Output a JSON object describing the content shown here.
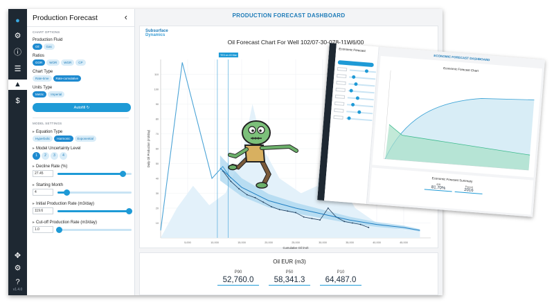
{
  "sidebar": {
    "title": "Production Forecast",
    "chart_options_title": "CHART OPTIONS",
    "production_fluid": {
      "label": "Production Fluid",
      "options": [
        "Oil",
        "Gas"
      ],
      "selected": "Oil"
    },
    "ratios": {
      "label": "Ratios",
      "options": [
        "GOR",
        "WOR",
        "WGR",
        "CP"
      ],
      "selected": "GOR"
    },
    "chart_type": {
      "label": "Chart Type",
      "options": [
        "Rate-time",
        "Rate-cumulative"
      ],
      "selected": "Rate-cumulative"
    },
    "units_type": {
      "label": "Units Type",
      "options": [
        "Metric",
        "Imperial"
      ],
      "selected": "Metric"
    },
    "apply_label": "Autofill",
    "model_settings_title": "MODEL SETTINGS",
    "equation_type": {
      "label": "Equation Type",
      "options": [
        "Hyperbolic",
        "Harmonic",
        "Exponential"
      ],
      "selected": "Harmonic"
    },
    "uncertainty": {
      "label": "Model Uncertainty Level",
      "options": [
        "1",
        "2",
        "3",
        "4"
      ],
      "selected": "1"
    },
    "decline_rate": {
      "label": "Decline Rate (%)",
      "value": "27.45",
      "level": 0.88
    },
    "starting_month": {
      "label": "Starting Month",
      "value": "4",
      "level": 0.12
    },
    "initial_rate": {
      "label": "Initial Production Rate (m3/day)",
      "value": "119.6",
      "level": 0.96
    },
    "cutoff_rate": {
      "label": "Cut-off Production Rate (m3/day)",
      "value": "1.0",
      "level": 0.02
    }
  },
  "iconbar": {
    "icons": [
      "water-drop-icon",
      "network-icon",
      "info-icon",
      "list-icon",
      "forecast-icon",
      "economics-icon",
      "move-icon",
      "settings-icon",
      "help-icon"
    ],
    "version": "v1.4.0"
  },
  "main": {
    "dashboard_title": "PRODUCTION FORECAST DASHBOARD",
    "logo_line1": "Subsurface",
    "logo_line2": "Dynamics",
    "chart_title": "Oil Forecast Chart For Well 102/07-30-078-11W6/00",
    "marker_label": "TE3 on 43 Mar",
    "eur": {
      "title": "Oil EUR (m3)",
      "items": [
        {
          "label": "P90",
          "value": "52,760.0"
        },
        {
          "label": "P50",
          "value": "58,341.3"
        },
        {
          "label": "P10",
          "value": "64,487.0"
        }
      ]
    }
  },
  "chart_data": {
    "type": "line",
    "title": "Oil Forecast Chart For Well 102/07-30-078-11W6/00",
    "xlabel": "Cumulative Oil (m3)",
    "ylabel": "Daily Oil Production (m3/day)",
    "xlim": [
      0,
      50000
    ],
    "ylim": [
      0,
      120
    ],
    "x_ticks": [
      "5,000",
      "10,000",
      "15,000",
      "20,000",
      "25,000",
      "30,000",
      "35,000",
      "40,000",
      "45,000"
    ],
    "y_ticks": [
      "10",
      "20",
      "30",
      "40",
      "50",
      "60",
      "70",
      "80",
      "90",
      "100",
      "110"
    ],
    "grid": true,
    "series": [
      {
        "name": "",
        "x": [
          0,
          4000,
          9500,
          11500,
          13000
        ],
        "y": [
          5,
          118,
          40,
          48,
          40
        ]
      },
      {
        "name": "",
        "x": [
          11500,
          13000,
          14500,
          16000,
          17500,
          19000,
          20500,
          22000,
          23500,
          25000,
          26500,
          28000,
          29500,
          31000,
          32500,
          34000,
          35500,
          37000,
          38500
        ],
        "y": [
          45,
          38,
          33,
          29,
          27,
          24,
          21,
          19,
          18,
          17,
          14,
          13,
          12,
          20,
          14,
          11,
          10,
          9,
          7
        ]
      },
      {
        "name": "",
        "x": [
          11000,
          15000,
          20000,
          25000,
          30000,
          35000,
          40000,
          45000,
          48000
        ],
        "y": [
          47,
          34,
          25,
          20,
          16,
          12,
          9,
          7,
          5
        ]
      }
    ],
    "vlines": [
      10500,
      12500
    ]
  },
  "econ": {
    "sidebar_title": "Economic Forecast",
    "dashboard_title": "ECONOMIC FORECAST DASHBOARD",
    "chart_title": "Economic Forecast Chart",
    "summary_title": "Economic Forecast Summary",
    "summary": [
      {
        "label": "IRR",
        "value": "81.70%"
      },
      {
        "label": "Payout",
        "value": "2016"
      }
    ]
  }
}
